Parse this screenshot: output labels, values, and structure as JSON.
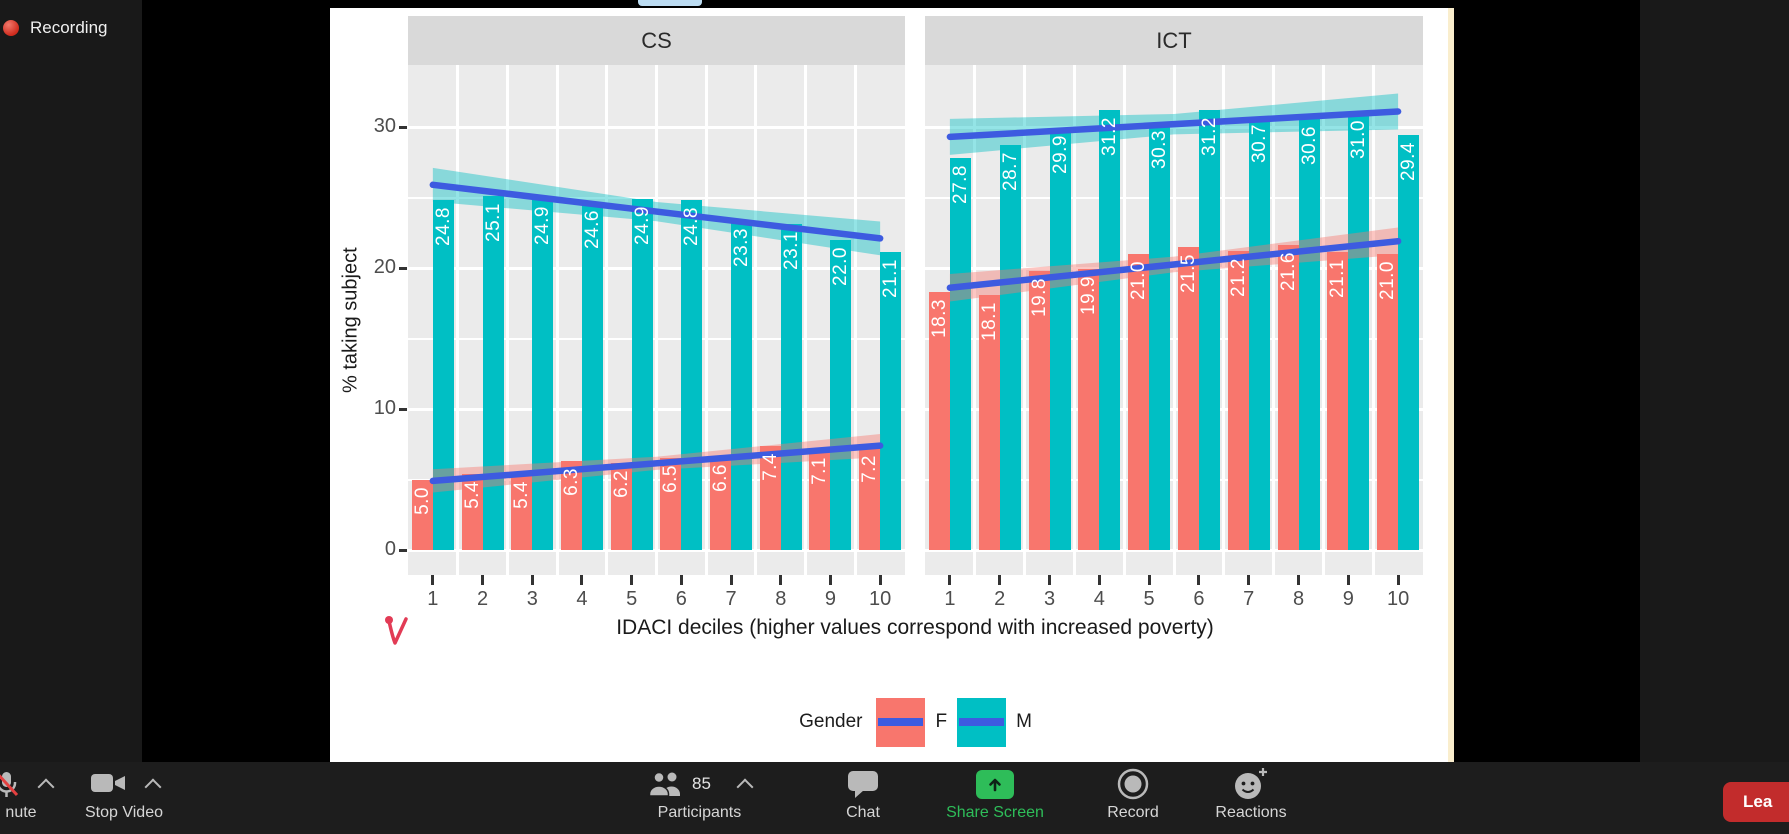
{
  "meeting": {
    "recording_label": "Recording",
    "toolbar": {
      "mute": {
        "label": "nute"
      },
      "stop_video": {
        "label": "Stop Video"
      },
      "participants": {
        "label": "Participants",
        "count": "85"
      },
      "chat": {
        "label": "Chat"
      },
      "share_screen": {
        "label": "Share Screen",
        "color": "#2ebd59"
      },
      "record": {
        "label": "Record"
      },
      "reactions": {
        "label": "Reactions"
      },
      "leave": {
        "label": "Lea"
      }
    }
  },
  "chart_data": {
    "type": "bar",
    "title": "",
    "xlabel": "IDACI deciles (higher values correspond with increased poverty)",
    "ylabel": "% taking subject",
    "yticks": [
      0,
      10,
      20,
      30
    ],
    "ylim": [
      0,
      34.5
    ],
    "categories": [
      "1",
      "2",
      "3",
      "4",
      "5",
      "6",
      "7",
      "8",
      "9",
      "10"
    ],
    "legend": {
      "title": "Gender",
      "entries": [
        "F",
        "M"
      ],
      "position": "bottom"
    },
    "series_colors": {
      "F": "#F8766D",
      "M": "#00BFC4"
    },
    "trend_line_color": "#3D5BE0",
    "facets": [
      {
        "label": "CS",
        "series": [
          {
            "name": "F",
            "values": [
              5.0,
              5.4,
              5.4,
              6.3,
              6.2,
              6.5,
              6.6,
              7.4,
              7.1,
              7.2
            ],
            "trend": {
              "start": 4.9,
              "end": 7.4,
              "ci": 0.55
            }
          },
          {
            "name": "M",
            "values": [
              24.8,
              25.1,
              24.9,
              24.6,
              24.9,
              24.8,
              23.3,
              23.1,
              22.0,
              21.1
            ],
            "trend": {
              "start": 25.9,
              "end": 22.1,
              "ci": 0.8
            }
          }
        ]
      },
      {
        "label": "ICT",
        "series": [
          {
            "name": "F",
            "values": [
              18.3,
              18.1,
              19.8,
              19.9,
              21.0,
              21.5,
              21.2,
              21.6,
              21.1,
              21.0
            ],
            "trend": {
              "start": 18.6,
              "end": 21.9,
              "ci": 0.65
            }
          },
          {
            "name": "M",
            "values": [
              27.8,
              28.7,
              29.9,
              31.2,
              30.3,
              31.2,
              30.7,
              30.6,
              31.0,
              29.4
            ],
            "trend": {
              "start": 29.3,
              "end": 31.1,
              "ci": 0.85
            }
          }
        ]
      }
    ]
  }
}
